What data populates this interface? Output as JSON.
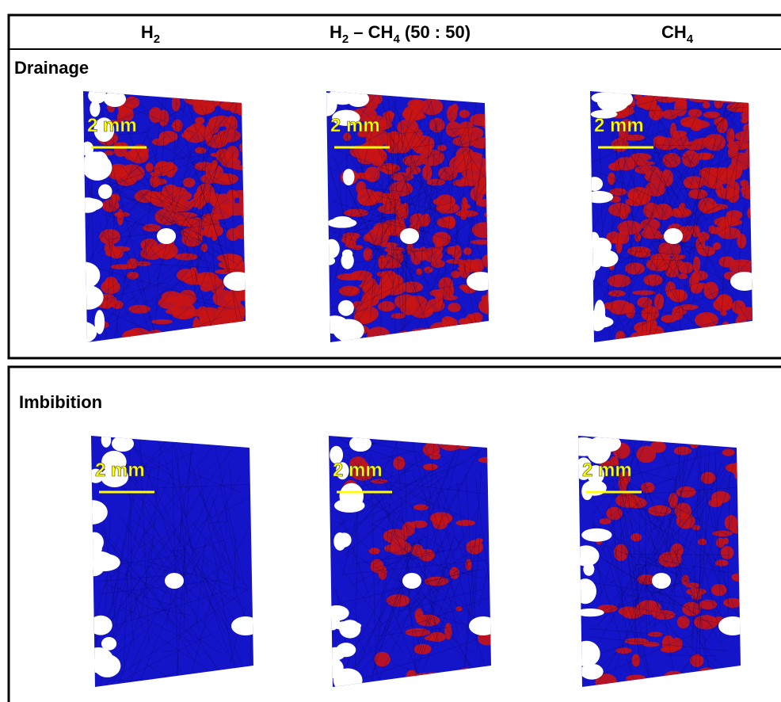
{
  "header": {
    "columns": [
      [
        {
          "text": "H"
        },
        {
          "sub": "2"
        }
      ],
      [
        {
          "text": "H"
        },
        {
          "sub": "2"
        },
        {
          "text": " – CH"
        },
        {
          "sub": "4"
        },
        {
          "text": " (50 : 50)"
        }
      ],
      [
        {
          "text": "CH"
        },
        {
          "sub": "4"
        }
      ]
    ]
  },
  "rows": [
    {
      "label": "Drainage",
      "panels": [
        {
          "scale_label": "2 mm"
        },
        {
          "scale_label": "2 mm"
        },
        {
          "scale_label": "2 mm"
        }
      ]
    },
    {
      "label": "Imbibition",
      "panels": [
        {
          "scale_label": "2 mm"
        },
        {
          "scale_label": "2 mm"
        },
        {
          "scale_label": "2 mm"
        }
      ]
    }
  ]
}
